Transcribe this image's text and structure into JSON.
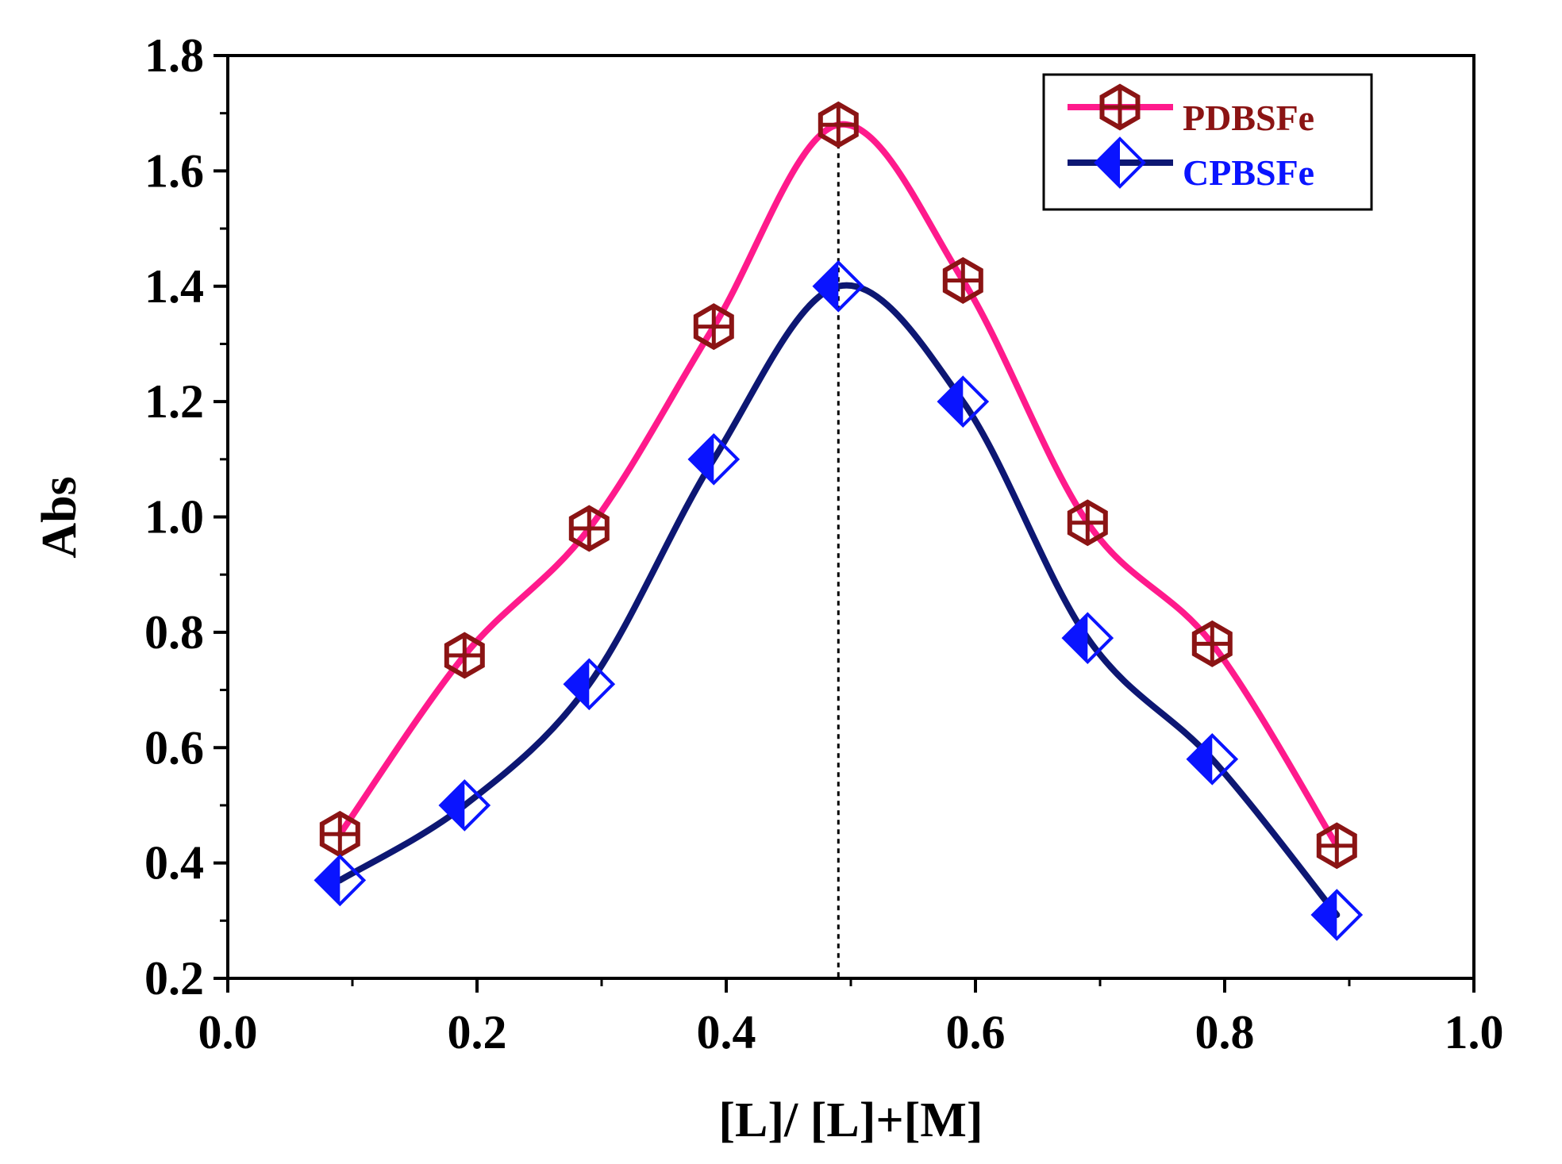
{
  "chart_data": {
    "type": "line",
    "xlabel": "[L]/ [L]+[M]",
    "ylabel": "Abs",
    "xlim": [
      0.0,
      1.0
    ],
    "ylim": [
      0.2,
      1.8
    ],
    "xticks": [
      "0.0",
      "0.2",
      "0.4",
      "0.6",
      "0.8",
      "1.0"
    ],
    "yticks": [
      "0.2",
      "0.4",
      "0.6",
      "0.8",
      "1.0",
      "1.2",
      "1.4",
      "1.6",
      "1.8"
    ],
    "vertical_reference_x": 0.49,
    "legend_position": "top-right",
    "x": [
      0.09,
      0.19,
      0.29,
      0.39,
      0.49,
      0.59,
      0.69,
      0.79,
      0.89
    ],
    "series": [
      {
        "name": "PDBSFe",
        "values": [
          0.45,
          0.76,
          0.98,
          1.33,
          1.68,
          1.41,
          0.99,
          0.78,
          0.43
        ],
        "line_color": "#ff1a8c",
        "marker": "hexagon-cross",
        "marker_color": "#8b1414",
        "text_color": "#8b1414"
      },
      {
        "name": "CPBSFe",
        "values": [
          0.37,
          0.5,
          0.71,
          1.1,
          1.4,
          1.2,
          0.79,
          0.58,
          0.31
        ],
        "line_color": "#0d1773",
        "marker": "half-filled-diamond",
        "marker_color": "#0a14ff",
        "text_color": "#0a14ff"
      }
    ]
  }
}
